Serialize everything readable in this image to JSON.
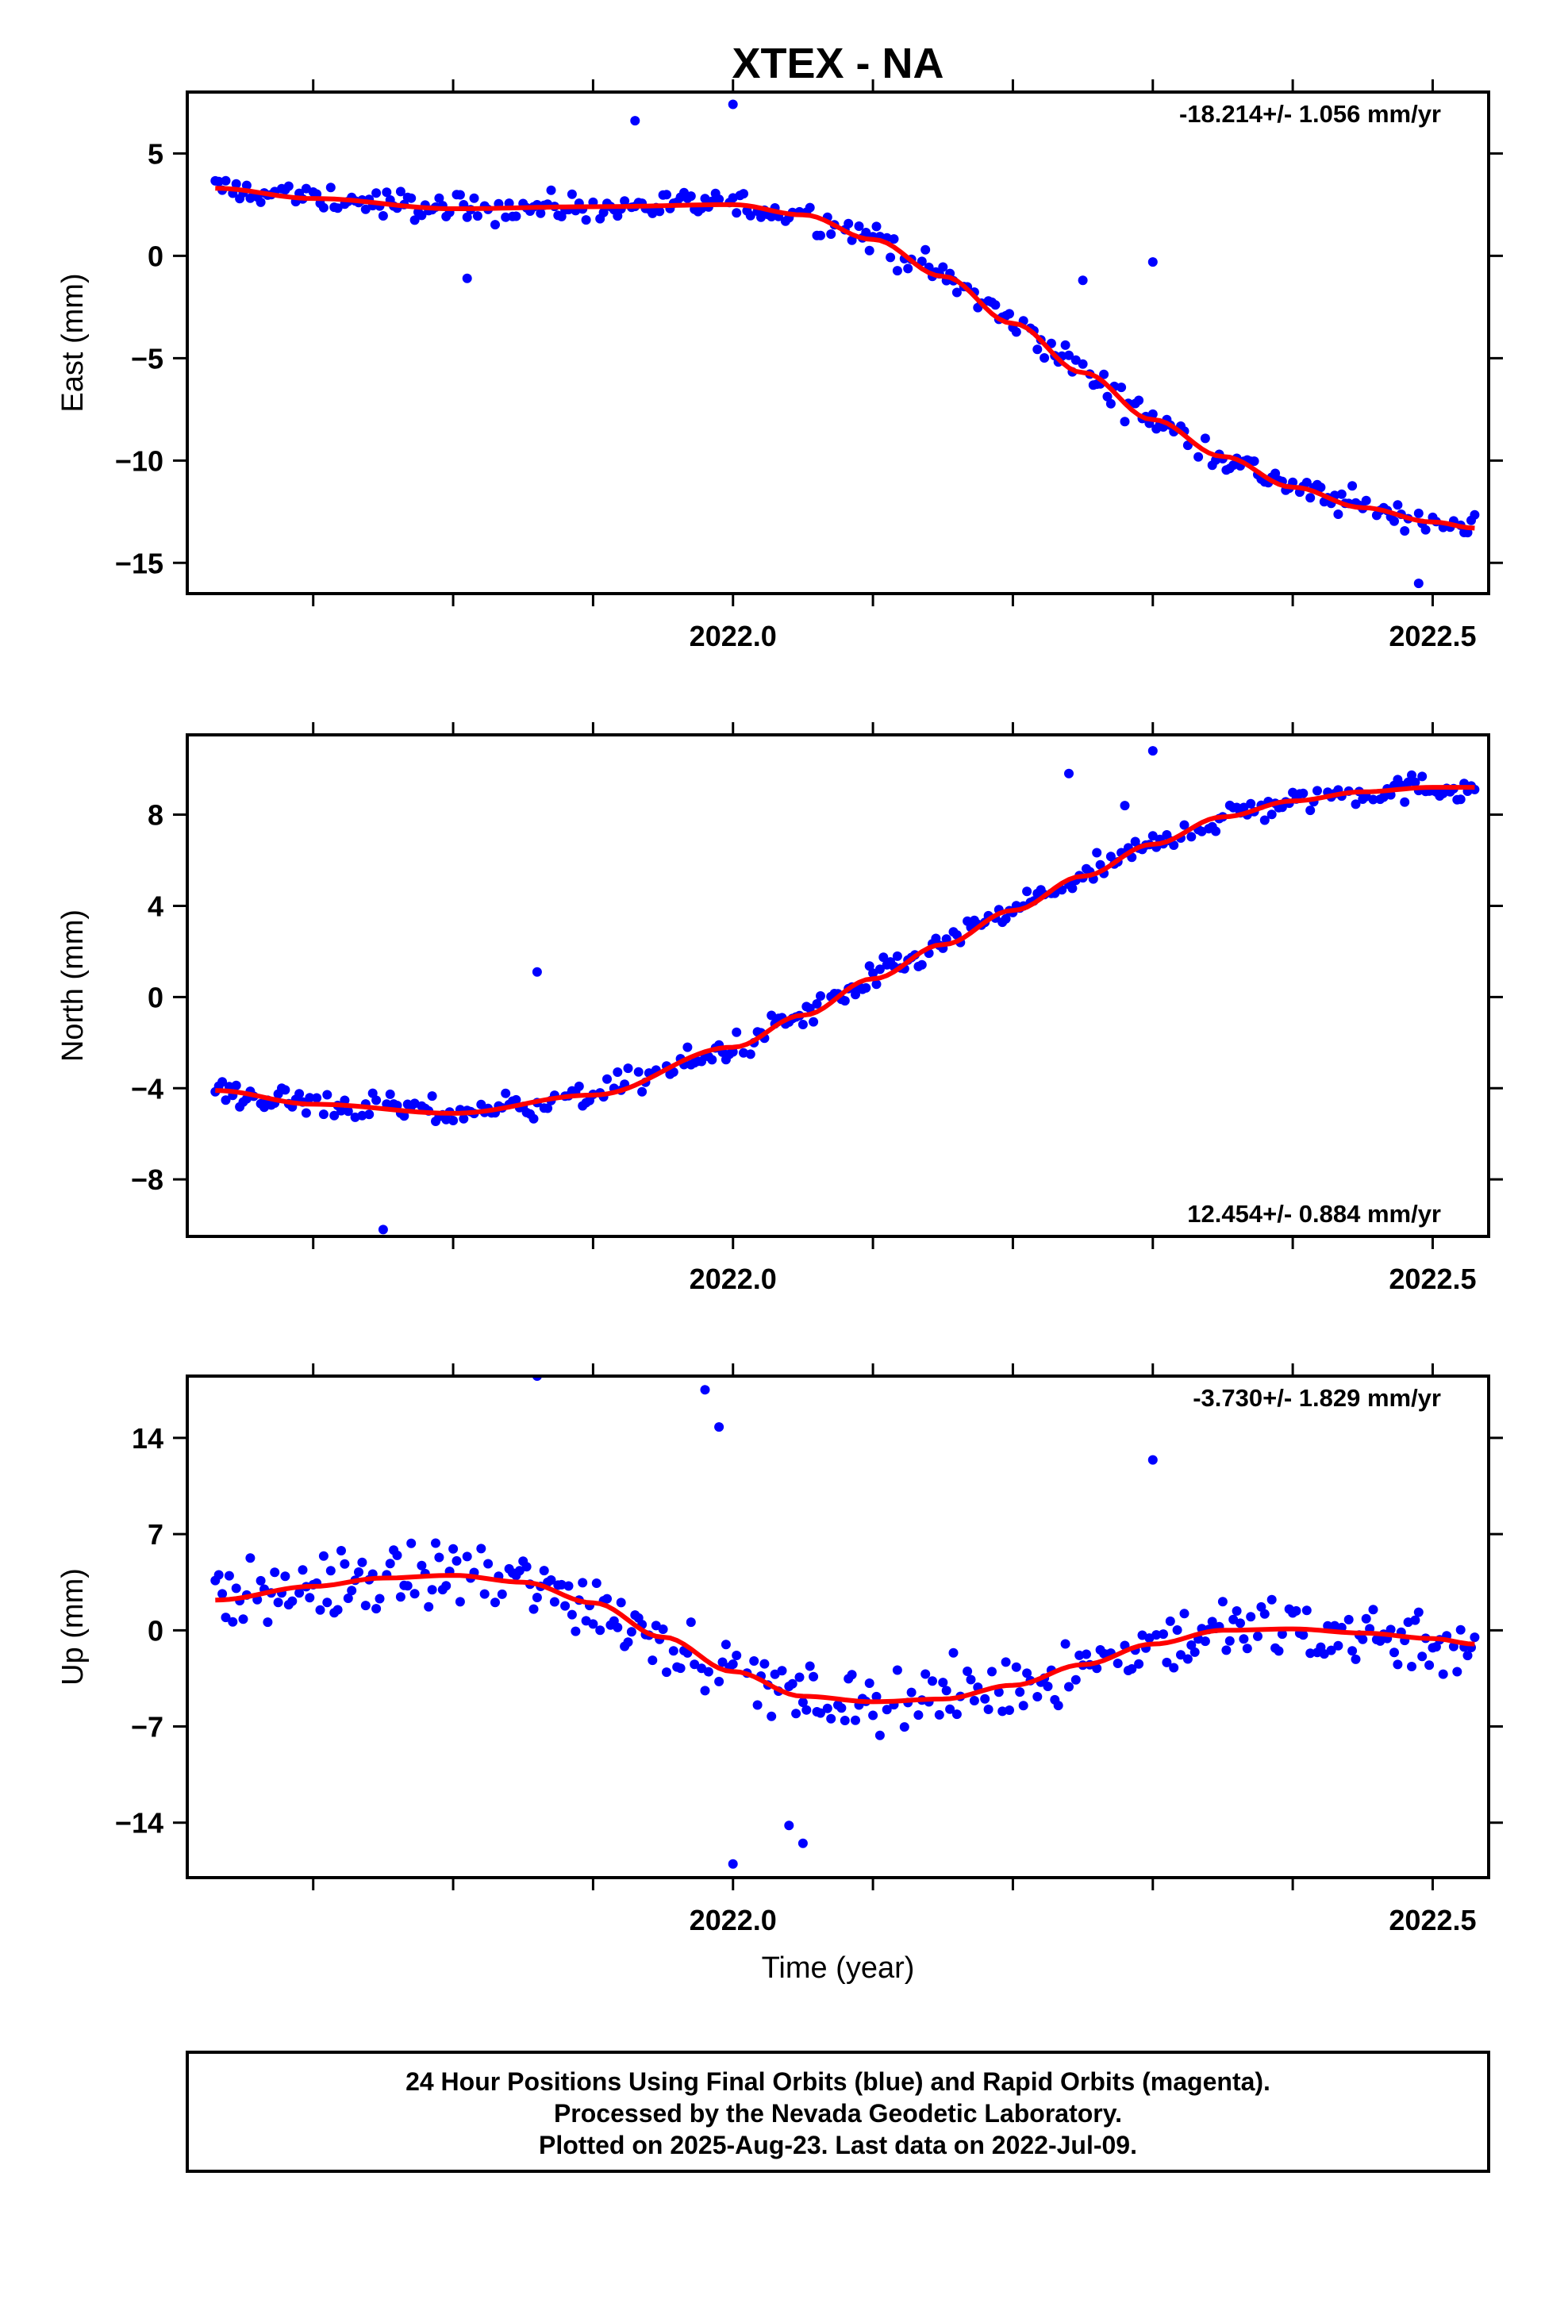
{
  "title": "XTEX - NA",
  "xlabel": "Time (year)",
  "footer": [
    "24 Hour Positions Using Final Orbits (blue) and Rapid Orbits (magenta).",
    "Processed by the Nevada Geodetic Laboratory.",
    "Plotted on 2025-Aug-23. Last data on 2022-Jul-09."
  ],
  "colors": {
    "points": "#0000ff",
    "fit": "#ff0000",
    "axes": "#000000"
  },
  "chart_data": [
    {
      "type": "scatter",
      "ylabel": "East (mm)",
      "rate": "-18.214+/- 1.056 mm/yr",
      "xlim": [
        2021.61,
        2022.54
      ],
      "ylim": [
        -16.5,
        8.0
      ],
      "yticks": [
        5,
        0,
        -5,
        -10,
        -15
      ],
      "xticks": [
        "2022.0",
        "2022.5"
      ],
      "fit_x": [
        2021.63,
        2021.7,
        2021.8,
        2021.9,
        2022.0,
        2022.05,
        2022.1,
        2022.15,
        2022.2,
        2022.25,
        2022.3,
        2022.35,
        2022.4,
        2022.45,
        2022.5,
        2022.53
      ],
      "fit_y": [
        3.3,
        2.8,
        2.3,
        2.4,
        2.5,
        2.0,
        0.8,
        -1.0,
        -3.3,
        -5.7,
        -8.0,
        -9.8,
        -11.3,
        -12.3,
        -13.0,
        -13.3
      ],
      "noise": 0.9,
      "outliers": [
        [
          2021.81,
          -1.1
        ],
        [
          2021.93,
          6.6
        ],
        [
          2022.0,
          7.4
        ],
        [
          2022.25,
          -1.2
        ],
        [
          2022.3,
          -0.3
        ],
        [
          2022.49,
          -16.0
        ]
      ]
    },
    {
      "type": "scatter",
      "ylabel": "North (mm)",
      "rate": "12.454+/- 0.884 mm/yr",
      "xlim": [
        2021.61,
        2022.54
      ],
      "ylim": [
        -10.5,
        11.5
      ],
      "yticks": [
        8,
        4,
        0,
        -4,
        -8
      ],
      "xticks": [
        "2022.0",
        "2022.5"
      ],
      "fit_x": [
        2021.63,
        2021.7,
        2021.8,
        2021.9,
        2022.0,
        2022.05,
        2022.1,
        2022.15,
        2022.2,
        2022.25,
        2022.3,
        2022.35,
        2022.4,
        2022.45,
        2022.5,
        2022.53
      ],
      "fit_y": [
        -4.1,
        -4.7,
        -5.1,
        -4.3,
        -2.2,
        -0.8,
        0.8,
        2.3,
        3.8,
        5.3,
        6.7,
        7.9,
        8.6,
        9.0,
        9.2,
        9.2
      ],
      "noise": 0.8,
      "outliers": [
        [
          2021.75,
          -10.2
        ],
        [
          2021.86,
          1.1
        ],
        [
          2022.24,
          9.8
        ],
        [
          2022.3,
          10.8
        ],
        [
          2022.28,
          8.4
        ]
      ]
    },
    {
      "type": "scatter",
      "ylabel": "Up (mm)",
      "rate": "-3.730+/- 1.829 mm/yr",
      "xlim": [
        2021.61,
        2022.54
      ],
      "ylim": [
        -18.0,
        18.5
      ],
      "yticks": [
        14,
        7,
        0,
        -7,
        -14
      ],
      "xticks": [
        "2022.0",
        "2022.5"
      ],
      "fit_x": [
        2021.63,
        2021.7,
        2021.75,
        2021.8,
        2021.85,
        2021.9,
        2021.95,
        2022.0,
        2022.05,
        2022.1,
        2022.15,
        2022.2,
        2022.25,
        2022.3,
        2022.35,
        2022.4,
        2022.45,
        2022.5,
        2022.53
      ],
      "fit_y": [
        2.2,
        3.2,
        3.8,
        4.0,
        3.5,
        2.0,
        -0.5,
        -3.0,
        -4.8,
        -5.2,
        -5.0,
        -4.0,
        -2.5,
        -1.0,
        0.0,
        0.1,
        -0.2,
        -0.6,
        -1.0
      ],
      "noise": 3.2,
      "outliers": [
        [
          2021.86,
          18.5
        ],
        [
          2021.98,
          17.5
        ],
        [
          2021.99,
          14.8
        ],
        [
          2022.0,
          -17.0
        ],
        [
          2022.3,
          12.4
        ],
        [
          2022.05,
          -15.5
        ],
        [
          2022.04,
          -14.2
        ]
      ]
    }
  ]
}
